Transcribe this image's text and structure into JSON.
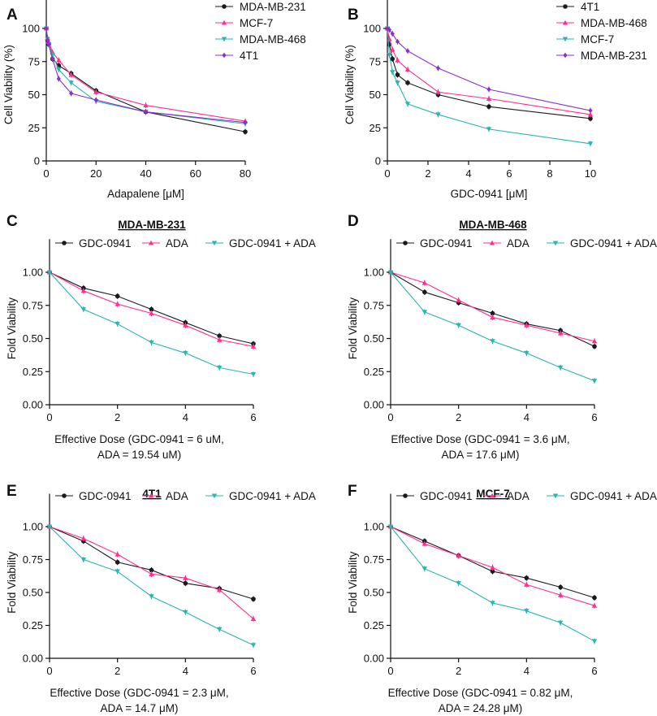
{
  "colors": {
    "black": "#1a1a1a",
    "magenta": "#ff2f8e",
    "teal": "#2bb5ad",
    "purple": "#8b2fc9"
  },
  "chart_data": [
    {
      "panel": "A",
      "type": "line",
      "title": "",
      "xlabel": "Adapalene [μM]",
      "ylabel": "Cell Viability (%)",
      "xlim": [
        0,
        80
      ],
      "ylim": [
        0,
        125
      ],
      "xticks": [
        0,
        20,
        40,
        60,
        80
      ],
      "yticks": [
        0,
        25,
        50,
        75,
        100
      ],
      "legend_position": "top-right",
      "series": [
        {
          "name": "MDA-MB-231",
          "color": "#1a1a1a",
          "marker": "circle",
          "x": [
            0,
            0.5,
            1,
            2.5,
            5,
            10,
            20,
            40,
            80
          ],
          "y": [
            100,
            91,
            88,
            77,
            72,
            66,
            53,
            37,
            22
          ]
        },
        {
          "name": "MCF-7",
          "color": "#ff2f8e",
          "marker": "triangle-up",
          "x": [
            0,
            0.5,
            1,
            2.5,
            5,
            10,
            20,
            40,
            80
          ],
          "y": [
            100,
            93,
            90,
            82,
            76,
            65,
            52,
            42,
            30
          ]
        },
        {
          "name": "MDA-MB-468",
          "color": "#2bb5ad",
          "marker": "triangle-down",
          "x": [
            0,
            0.5,
            1,
            2.5,
            5,
            10,
            20,
            40,
            80
          ],
          "y": [
            100,
            92,
            88,
            80,
            69,
            59,
            45,
            37,
            28
          ]
        },
        {
          "name": "4T1",
          "color": "#8b2fc9",
          "marker": "diamond",
          "x": [
            0,
            0.5,
            1,
            2.5,
            5,
            10,
            20,
            40,
            80
          ],
          "y": [
            100,
            91,
            88,
            77,
            62,
            51,
            46,
            37,
            29
          ]
        }
      ]
    },
    {
      "panel": "B",
      "type": "line",
      "title": "",
      "xlabel": "GDC-0941 [μM]",
      "ylabel": "Cell Viability (%)",
      "xlim": [
        0,
        10
      ],
      "ylim": [
        0,
        125
      ],
      "xticks": [
        0,
        2,
        4,
        6,
        8,
        10
      ],
      "yticks": [
        0,
        25,
        50,
        75,
        100
      ],
      "legend_position": "top-right",
      "series": [
        {
          "name": "4T1",
          "color": "#1a1a1a",
          "marker": "circle",
          "x": [
            0,
            0.1,
            0.25,
            0.5,
            1,
            2.5,
            5,
            10
          ],
          "y": [
            100,
            88,
            77,
            65,
            59,
            50,
            41,
            32
          ]
        },
        {
          "name": "MDA-MB-468",
          "color": "#ff2f8e",
          "marker": "triangle-up",
          "x": [
            0,
            0.1,
            0.25,
            0.5,
            1,
            2.5,
            5,
            10
          ],
          "y": [
            100,
            92,
            84,
            76,
            69,
            52,
            47,
            35
          ]
        },
        {
          "name": "MCF-7",
          "color": "#2bb5ad",
          "marker": "triangle-down",
          "x": [
            0,
            0.1,
            0.25,
            0.5,
            1,
            2.5,
            5,
            10
          ],
          "y": [
            100,
            80,
            67,
            59,
            43,
            35,
            24,
            13
          ]
        },
        {
          "name": "MDA-MB-231",
          "color": "#8b2fc9",
          "marker": "diamond",
          "x": [
            0,
            0.1,
            0.25,
            0.5,
            1,
            2.5,
            5,
            10
          ],
          "y": [
            100,
            99,
            96,
            90,
            83,
            70,
            54,
            38
          ]
        }
      ]
    },
    {
      "panel": "C",
      "type": "line",
      "title": "MDA-MB-231",
      "xlabel": "Effective Dose (GDC-0941 = 6 uM,",
      "xlabel2": "ADA = 19.54 uM)",
      "ylabel": "Fold Viability",
      "xlim": [
        0,
        6
      ],
      "ylim": [
        0,
        1.25
      ],
      "xticks": [
        0,
        2,
        4,
        6
      ],
      "yticks": [
        "0.00",
        "0.25",
        "0.50",
        "0.75",
        "1.00"
      ],
      "legend_position": "top",
      "series": [
        {
          "name": "GDC-0941",
          "color": "#1a1a1a",
          "marker": "circle",
          "x": [
            0,
            1,
            2,
            3,
            4,
            5,
            6
          ],
          "y": [
            1.0,
            0.88,
            0.82,
            0.72,
            0.62,
            0.52,
            0.46
          ]
        },
        {
          "name": "ADA",
          "color": "#ff2f8e",
          "marker": "triangle-up",
          "x": [
            0,
            1,
            2,
            3,
            4,
            5,
            6
          ],
          "y": [
            1.0,
            0.86,
            0.76,
            0.69,
            0.6,
            0.49,
            0.44
          ]
        },
        {
          "name": "GDC-0941 + ADA",
          "color": "#2bb5ad",
          "marker": "triangle-down",
          "x": [
            0,
            1,
            2,
            3,
            4,
            5,
            6
          ],
          "y": [
            1.0,
            0.72,
            0.61,
            0.47,
            0.39,
            0.28,
            0.23
          ]
        }
      ]
    },
    {
      "panel": "D",
      "type": "line",
      "title": "MDA-MB-468",
      "xlabel": "Effective Dose (GDC-0941 = 3.6 μM,",
      "xlabel2": "ADA = 17.6 μM)",
      "ylabel": "Fold Viability",
      "xlim": [
        0,
        6
      ],
      "ylim": [
        0,
        1.25
      ],
      "xticks": [
        0,
        2,
        4,
        6
      ],
      "yticks": [
        "0.00",
        "0.25",
        "0.50",
        "0.75",
        "1.00"
      ],
      "legend_position": "top",
      "series": [
        {
          "name": "GDC-0941",
          "color": "#1a1a1a",
          "marker": "circle",
          "x": [
            0,
            1,
            2,
            3,
            4,
            5,
            6
          ],
          "y": [
            1.0,
            0.85,
            0.77,
            0.69,
            0.61,
            0.56,
            0.44
          ]
        },
        {
          "name": "ADA",
          "color": "#ff2f8e",
          "marker": "triangle-up",
          "x": [
            0,
            1,
            2,
            3,
            4,
            5,
            6
          ],
          "y": [
            1.0,
            0.92,
            0.79,
            0.66,
            0.6,
            0.54,
            0.48
          ]
        },
        {
          "name": "GDC-0941 + ADA",
          "color": "#2bb5ad",
          "marker": "triangle-down",
          "x": [
            0,
            1,
            2,
            3,
            4,
            5,
            6
          ],
          "y": [
            1.0,
            0.7,
            0.6,
            0.48,
            0.39,
            0.28,
            0.18
          ]
        }
      ]
    },
    {
      "panel": "E",
      "type": "line",
      "title": "4T1",
      "xlabel": "Effective Dose (GDC-0941 = 2.3 μM,",
      "xlabel2": "ADA = 14.7 μM)",
      "ylabel": "Fold Viability",
      "xlim": [
        0,
        6
      ],
      "ylim": [
        0,
        1.25
      ],
      "xticks": [
        0,
        2,
        4,
        6
      ],
      "yticks": [
        "0.00",
        "0.25",
        "0.50",
        "0.75",
        "1.00"
      ],
      "legend_position": "top",
      "series": [
        {
          "name": "GDC-0941",
          "color": "#1a1a1a",
          "marker": "circle",
          "x": [
            0,
            1,
            2,
            3,
            4,
            5,
            6
          ],
          "y": [
            1.0,
            0.89,
            0.73,
            0.67,
            0.57,
            0.53,
            0.45
          ]
        },
        {
          "name": "ADA",
          "color": "#ff2f8e",
          "marker": "triangle-up",
          "x": [
            0,
            1,
            2,
            3,
            4,
            5,
            6
          ],
          "y": [
            1.0,
            0.91,
            0.79,
            0.64,
            0.61,
            0.52,
            0.3
          ]
        },
        {
          "name": "GDC-0941 + ADA",
          "color": "#2bb5ad",
          "marker": "triangle-down",
          "x": [
            0,
            1,
            2,
            3,
            4,
            5,
            6
          ],
          "y": [
            1.0,
            0.75,
            0.66,
            0.47,
            0.35,
            0.22,
            0.1
          ]
        }
      ]
    },
    {
      "panel": "F",
      "type": "line",
      "title": "MCF-7",
      "xlabel": "Effective Dose (GDC-0941 = 0.82 μM,",
      "xlabel2": "ADA = 24.28 μM)",
      "ylabel": "Fold Viability",
      "xlim": [
        0,
        6
      ],
      "ylim": [
        0,
        1.25
      ],
      "xticks": [
        0,
        2,
        4,
        6
      ],
      "yticks": [
        "0.00",
        "0.25",
        "0.50",
        "0.75",
        "1.00"
      ],
      "legend_position": "top",
      "series": [
        {
          "name": "GDC-0941",
          "color": "#1a1a1a",
          "marker": "circle",
          "x": [
            0,
            1,
            2,
            3,
            4,
            5,
            6
          ],
          "y": [
            1.0,
            0.89,
            0.78,
            0.66,
            0.61,
            0.54,
            0.46
          ]
        },
        {
          "name": "ADA",
          "color": "#ff2f8e",
          "marker": "triangle-up",
          "x": [
            0,
            1,
            2,
            3,
            4,
            5,
            6
          ],
          "y": [
            1.0,
            0.87,
            0.78,
            0.69,
            0.56,
            0.48,
            0.4
          ]
        },
        {
          "name": "GDC-0941 + ADA",
          "color": "#2bb5ad",
          "marker": "triangle-down",
          "x": [
            0,
            1,
            2,
            3,
            4,
            5,
            6
          ],
          "y": [
            1.0,
            0.68,
            0.57,
            0.42,
            0.36,
            0.27,
            0.13
          ]
        }
      ]
    }
  ]
}
